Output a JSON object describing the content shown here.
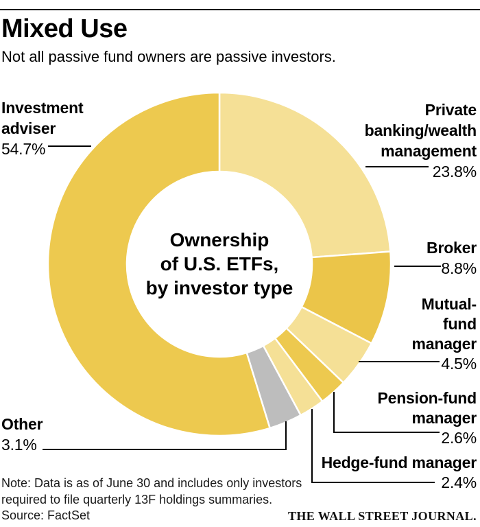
{
  "header": {
    "title": "Mixed Use",
    "subtitle": "Not all passive fund owners are passive investors."
  },
  "center_label": {
    "lines": [
      "Ownership",
      "of U.S. ETFs,",
      "by investor type"
    ]
  },
  "chart_data": {
    "type": "pie",
    "variant": "donut",
    "title": "Ownership of U.S. ETFs, by investor type",
    "unit": "%",
    "start_angle_deg": 0,
    "direction": "clockwise",
    "donut_hole_ratio": 0.54,
    "slices": [
      {
        "label": "Private banking/wealth management",
        "value": 23.8,
        "color": "#F5E096"
      },
      {
        "label": "Broker",
        "value": 8.8,
        "color": "#EBC549"
      },
      {
        "label": "Mutual-fund manager",
        "value": 4.5,
        "color": "#F5E096"
      },
      {
        "label": "Pension-fund manager",
        "value": 2.6,
        "color": "#EDC94F"
      },
      {
        "label": "Hedge-fund manager",
        "value": 2.4,
        "color": "#F5E096"
      },
      {
        "label": "Other",
        "value": 3.1,
        "color": "#BDBDBD"
      },
      {
        "label": "Investment adviser",
        "value": 54.7,
        "color": "#EDC94F"
      }
    ],
    "slice_border_color": "#ffffff"
  },
  "callouts": {
    "investment_adviser": {
      "lines": [
        "Investment",
        "adviser"
      ],
      "value": "54.7%"
    },
    "private_banking": {
      "lines": [
        "Private",
        "banking/wealth",
        "management"
      ],
      "value": "23.8%"
    },
    "broker": {
      "lines": [
        "Broker"
      ],
      "value": "8.8%"
    },
    "mutual_fund": {
      "lines": [
        "Mutual-",
        "fund",
        "manager"
      ],
      "value": "4.5%"
    },
    "pension_fund": {
      "lines": [
        "Pension-fund",
        "manager"
      ],
      "value": "2.6%"
    },
    "hedge_fund": {
      "lines": [
        "Hedge-fund manager"
      ],
      "value": "2.4%"
    },
    "other": {
      "lines": [
        "Other"
      ],
      "value": "3.1%"
    }
  },
  "footer": {
    "note_line1": "Note: Data is as of June 30 and includes only investors",
    "note_line2": "required to file quarterly 13F holdings summaries.",
    "source": "Source: FactSet",
    "brand": "THE WALL STREET JOURNAL."
  }
}
